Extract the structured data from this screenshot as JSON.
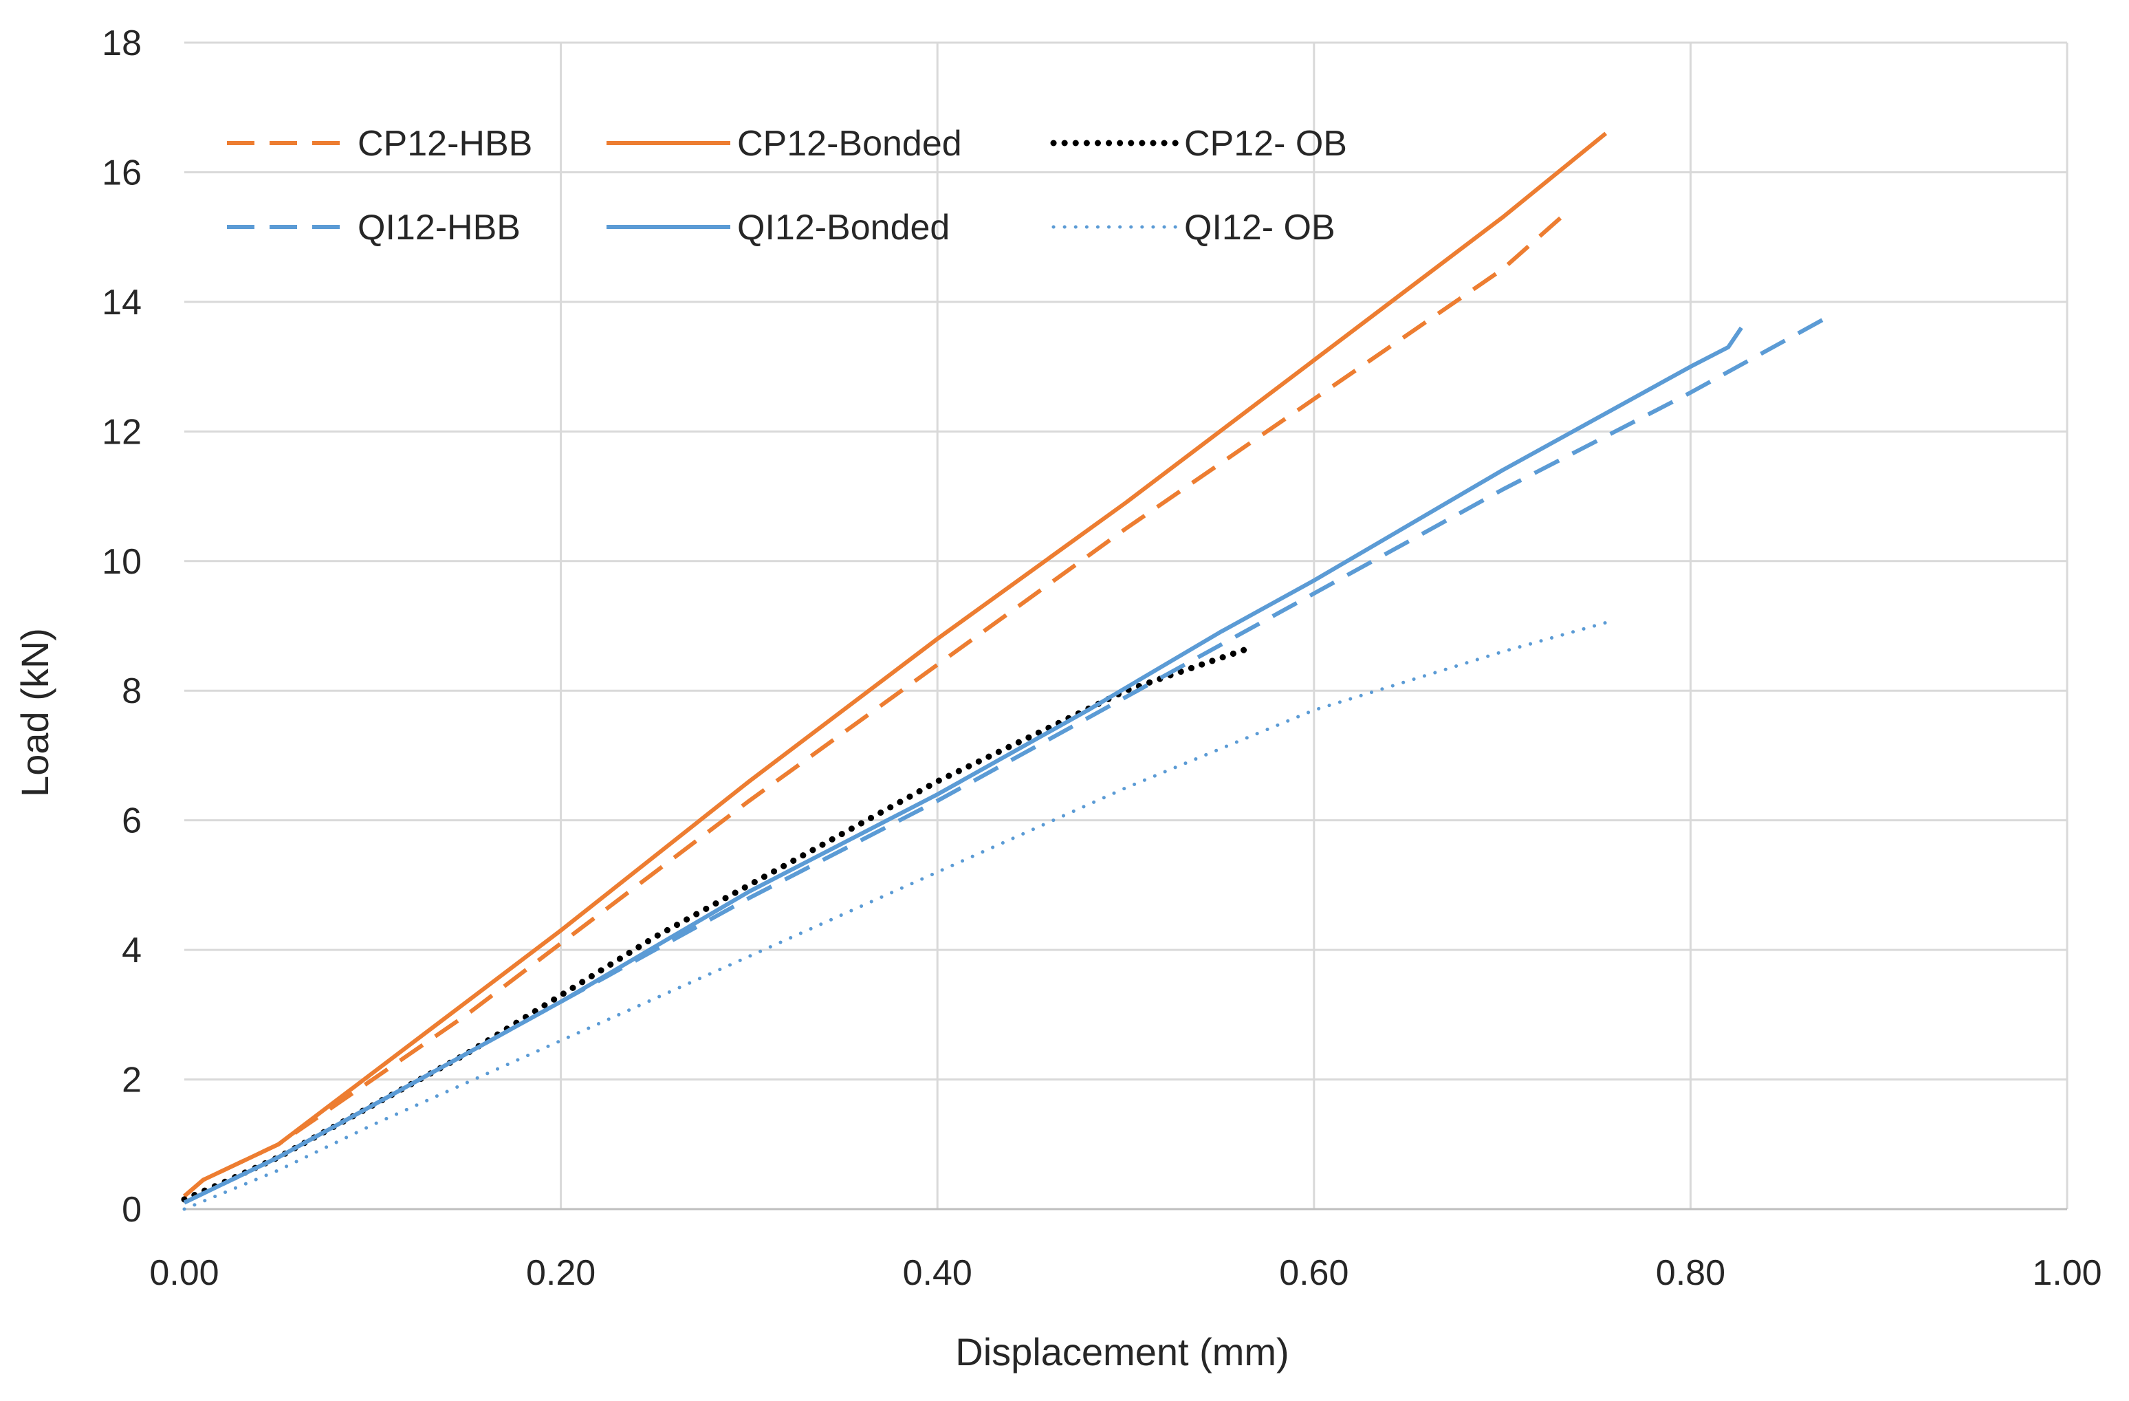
{
  "chart_data": {
    "type": "line",
    "title": "",
    "xlabel": "Displacement (mm)",
    "ylabel": "Load (kN)",
    "xlim": [
      0,
      1.0
    ],
    "ylim": [
      0,
      18
    ],
    "xticks": [
      "0.00",
      "0.20",
      "0.40",
      "0.60",
      "0.80",
      "1.00"
    ],
    "yticks": [
      "0",
      "2",
      "4",
      "6",
      "8",
      "10",
      "12",
      "14",
      "16",
      "18"
    ],
    "grid": true,
    "legend_position": "top-left",
    "colors": {
      "orange": "#ED7D31",
      "blue": "#5B9BD5",
      "black": "#000000",
      "grid": "#D9D9D9"
    },
    "series": [
      {
        "name": "CP12-HBB",
        "color": "#ED7D31",
        "style": "dashed",
        "x": [
          0,
          0.01,
          0.05,
          0.1,
          0.15,
          0.2,
          0.3,
          0.4,
          0.5,
          0.6,
          0.7,
          0.735
        ],
        "y": [
          0.2,
          0.45,
          1.0,
          2.0,
          3.0,
          4.1,
          6.3,
          8.4,
          10.5,
          12.5,
          14.5,
          15.4
        ]
      },
      {
        "name": "CP12-Bonded",
        "color": "#ED7D31",
        "style": "solid",
        "x": [
          0,
          0.01,
          0.05,
          0.1,
          0.15,
          0.2,
          0.3,
          0.4,
          0.5,
          0.6,
          0.7,
          0.755
        ],
        "y": [
          0.2,
          0.45,
          1.0,
          2.1,
          3.2,
          4.3,
          6.6,
          8.8,
          10.9,
          13.1,
          15.3,
          16.6
        ]
      },
      {
        "name": "CP12- OB",
        "color": "#000000",
        "style": "dotted",
        "x": [
          0,
          0.02,
          0.05,
          0.1,
          0.15,
          0.2,
          0.25,
          0.3,
          0.35,
          0.4,
          0.45,
          0.5,
          0.55,
          0.565
        ],
        "y": [
          0.15,
          0.4,
          0.8,
          1.6,
          2.4,
          3.3,
          4.2,
          5.0,
          5.8,
          6.6,
          7.3,
          8.0,
          8.5,
          8.65
        ]
      },
      {
        "name": "QI12-HBB",
        "color": "#5B9BD5",
        "style": "dashed",
        "x": [
          0,
          0.05,
          0.1,
          0.2,
          0.3,
          0.4,
          0.5,
          0.6,
          0.7,
          0.8,
          0.875
        ],
        "y": [
          0.1,
          0.8,
          1.6,
          3.2,
          4.8,
          6.3,
          7.9,
          9.5,
          11.1,
          12.6,
          13.8
        ]
      },
      {
        "name": "QI12-Bonded",
        "color": "#5B9BD5",
        "style": "solid",
        "x": [
          0,
          0.05,
          0.1,
          0.2,
          0.3,
          0.4,
          0.48,
          0.55,
          0.6,
          0.7,
          0.8,
          0.82,
          0.827
        ],
        "y": [
          0.1,
          0.8,
          1.6,
          3.2,
          4.9,
          6.4,
          7.7,
          8.9,
          9.7,
          11.4,
          13.0,
          13.3,
          13.6
        ]
      },
      {
        "name": "QI12- OB",
        "color": "#5B9BD5",
        "style": "dotted",
        "x": [
          0,
          0.05,
          0.1,
          0.2,
          0.3,
          0.4,
          0.5,
          0.6,
          0.7,
          0.755
        ],
        "y": [
          0,
          0.6,
          1.3,
          2.6,
          3.9,
          5.2,
          6.5,
          7.7,
          8.6,
          9.05
        ]
      }
    ]
  }
}
